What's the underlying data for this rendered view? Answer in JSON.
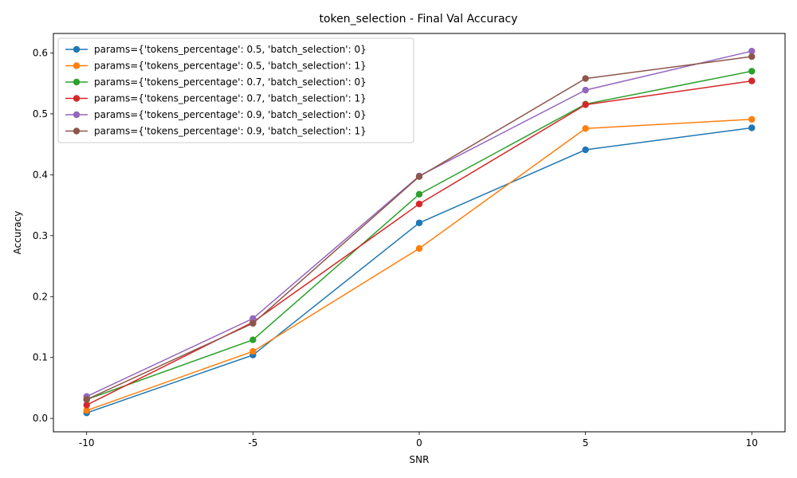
{
  "chart_data": {
    "type": "line",
    "title": "token_selection - Final Val Accuracy",
    "xlabel": "SNR",
    "ylabel": "Accuracy",
    "x": [
      -10,
      -5,
      0,
      5,
      10
    ],
    "x_tick_labels": [
      "-10",
      "-5",
      "0",
      "5",
      "10"
    ],
    "xlim": [
      -11,
      11
    ],
    "ylim": [
      -0.022,
      0.632
    ],
    "y_ticks": [
      0.0,
      0.1,
      0.2,
      0.3,
      0.4,
      0.5,
      0.6
    ],
    "y_tick_labels": [
      "0.0",
      "0.1",
      "0.2",
      "0.3",
      "0.4",
      "0.5",
      "0.6"
    ],
    "grid": false,
    "legend_position": "top-left",
    "series": [
      {
        "name": "params={'tokens_percentage': 0.5, 'batch_selection': 0}",
        "color": "#1f77b4",
        "values": [
          0.009,
          0.104,
          0.321,
          0.441,
          0.477
        ]
      },
      {
        "name": "params={'tokens_percentage': 0.5, 'batch_selection': 1}",
        "color": "#ff7f0e",
        "values": [
          0.013,
          0.11,
          0.279,
          0.476,
          0.491
        ]
      },
      {
        "name": "params={'tokens_percentage': 0.7, 'batch_selection': 0}",
        "color": "#2ca02c",
        "values": [
          0.031,
          0.129,
          0.368,
          0.516,
          0.57
        ]
      },
      {
        "name": "params={'tokens_percentage': 0.7, 'batch_selection': 1}",
        "color": "#d62728",
        "values": [
          0.022,
          0.158,
          0.352,
          0.515,
          0.554
        ]
      },
      {
        "name": "params={'tokens_percentage': 0.9, 'batch_selection': 0}",
        "color": "#9467bd",
        "values": [
          0.036,
          0.164,
          0.398,
          0.539,
          0.603
        ]
      },
      {
        "name": "params={'tokens_percentage': 0.9, 'batch_selection': 1}",
        "color": "#8c564b",
        "values": [
          0.031,
          0.156,
          0.397,
          0.558,
          0.594
        ]
      }
    ]
  }
}
